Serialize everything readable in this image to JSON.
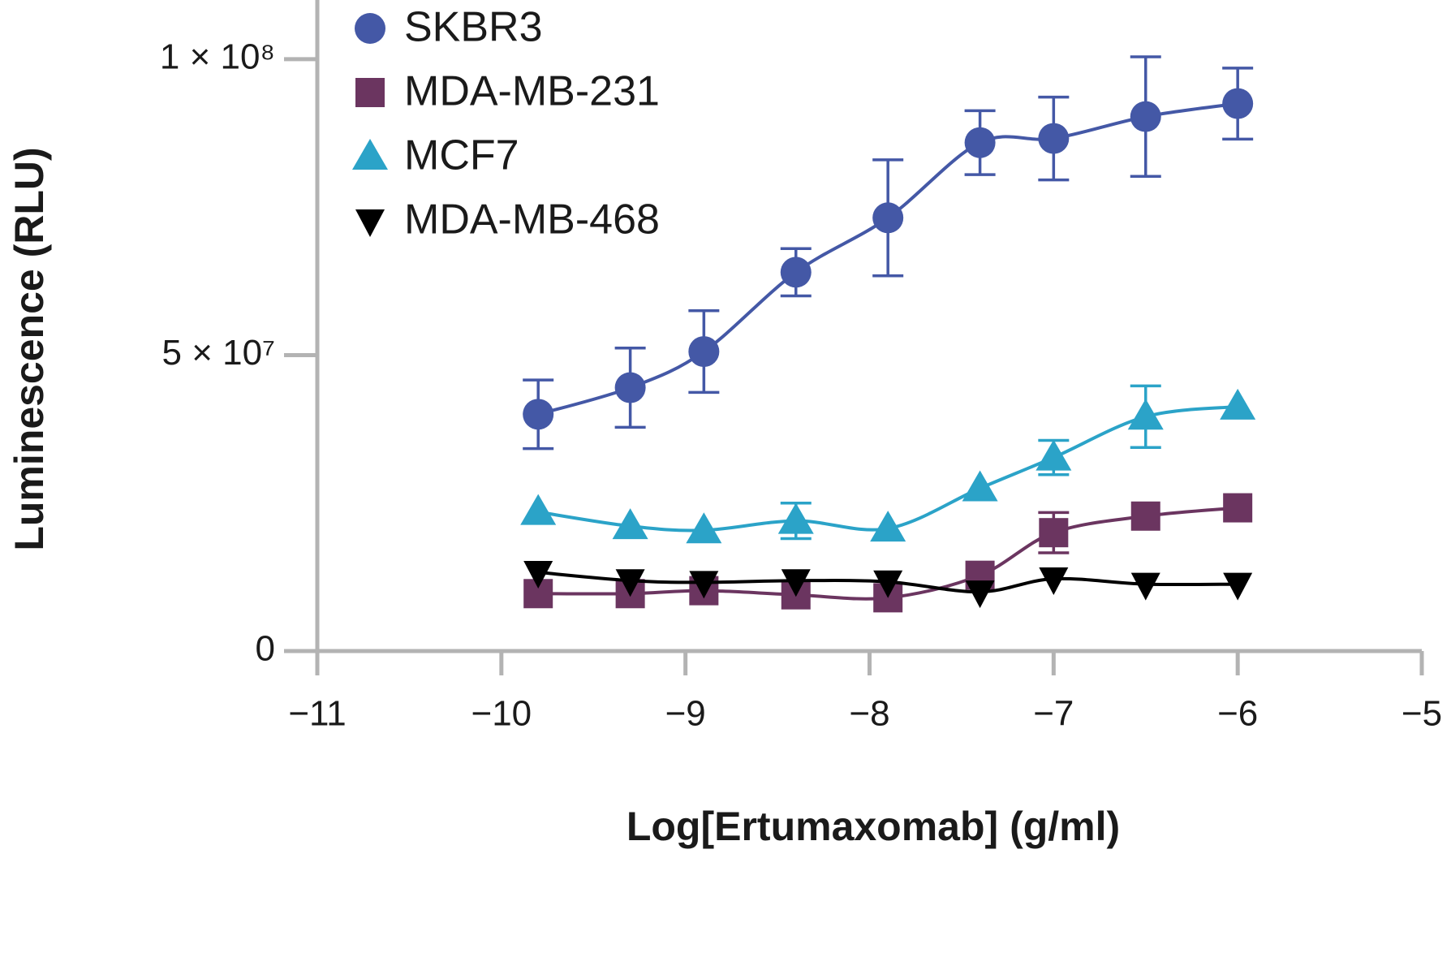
{
  "chart_data": {
    "type": "scatter",
    "x_label": "Log[Ertumaxomab] (g/ml)",
    "y_label": "Luminescence (RLU)",
    "x": [
      -9.8,
      -9.3,
      -8.9,
      -8.4,
      -7.9,
      -7.4,
      -7.0,
      -6.5,
      -6.0
    ],
    "xlim": [
      -11,
      -5
    ],
    "xticks": [
      {
        "value": -11,
        "label": "−11"
      },
      {
        "value": -10,
        "label": "−10"
      },
      {
        "value": -9,
        "label": "−9"
      },
      {
        "value": -8,
        "label": "−8"
      },
      {
        "value": -7,
        "label": "−7"
      },
      {
        "value": -6,
        "label": "−6"
      },
      {
        "value": -5,
        "label": "−5"
      }
    ],
    "ylim": [
      0,
      110000000
    ],
    "yticks": [
      0,
      {
        "value": 50000000,
        "label": "5 × 10⁷"
      },
      {
        "value": 100000000,
        "label": "1 × 10⁸"
      }
    ],
    "fit_curves": true,
    "series": [
      {
        "name": "SKBR3",
        "color": "#4458a6",
        "marker": "circle",
        "values": [
          40000000,
          44500000,
          50600000,
          64000000,
          73200000,
          85900000,
          86600000,
          90300000,
          92500000
        ],
        "errors": [
          5800000,
          6700000,
          6900000,
          4000000,
          9800000,
          5400000,
          7000000,
          10100000,
          6000000
        ]
      },
      {
        "name": "MDA-MB-231",
        "color": "#6b3560",
        "marker": "square",
        "values": [
          9700000,
          9700000,
          10200000,
          9500000,
          9000000,
          12800000,
          20000000,
          22800000,
          24200000
        ],
        "errors": [
          null,
          null,
          null,
          null,
          null,
          null,
          3400000,
          null,
          null
        ]
      },
      {
        "name": "MCF7",
        "color": "#2ba3c8",
        "marker": "triangle-up",
        "values": [
          23500000,
          21100000,
          20400000,
          22000000,
          20700000,
          27500000,
          32700000,
          39600000,
          41300000
        ],
        "errors": [
          null,
          null,
          null,
          3000000,
          null,
          null,
          2900000,
          5200000,
          null
        ]
      },
      {
        "name": "MDA-MB-468",
        "color": "#000000",
        "marker": "triangle-down",
        "values": [
          13300000,
          11900000,
          11600000,
          11900000,
          11700000,
          10000000,
          12200000,
          11300000,
          11300000
        ],
        "errors": [
          null,
          null,
          null,
          null,
          null,
          null,
          null,
          null,
          null
        ]
      }
    ]
  }
}
